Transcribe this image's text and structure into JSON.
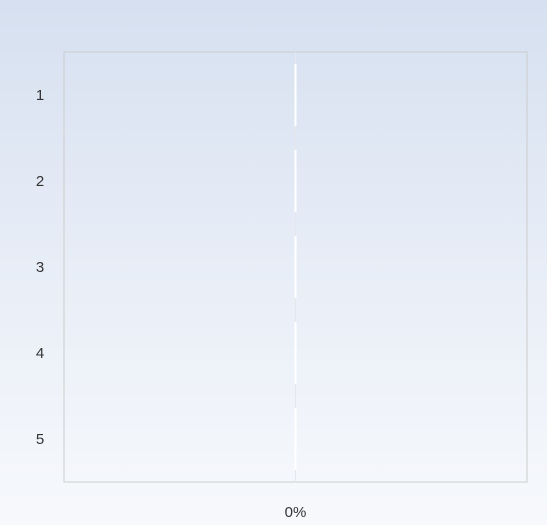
{
  "chart_data": {
    "type": "bar",
    "orientation": "horizontal",
    "categories": [
      "1",
      "2",
      "3",
      "4",
      "5"
    ],
    "series": [
      {
        "values": [
          0,
          0,
          0,
          0,
          0
        ]
      }
    ],
    "x_ticks": [
      "0%"
    ],
    "xlim": [
      -1,
      1
    ],
    "title": "",
    "xlabel": "",
    "ylabel": "",
    "grid": true,
    "legend": "none",
    "colors": {
      "background_top": "#d6e0f0",
      "background_bottom": "#f7f9fc",
      "plot_border": "#cccccc",
      "zero_line": "#ffffff",
      "text": "#333333"
    }
  }
}
